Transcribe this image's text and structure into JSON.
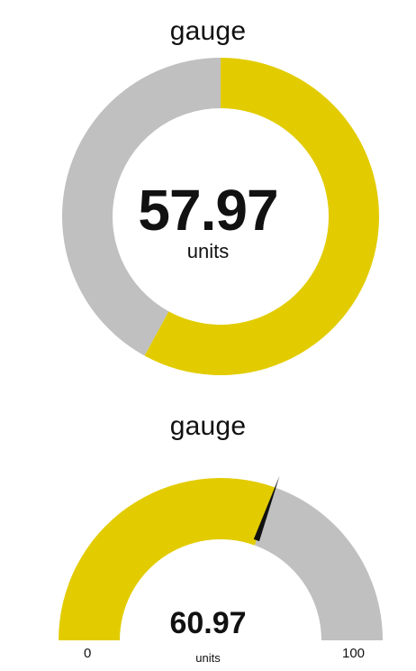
{
  "colors": {
    "fill": "#e2cc00",
    "track": "#c0c0c0",
    "needle": "#111111"
  },
  "donut_gauge": {
    "title": "gauge",
    "value": 57.97,
    "value_text": "57.97",
    "unit": "units",
    "min": 0,
    "max": 100
  },
  "semi_gauge": {
    "title": "gauge",
    "value": 60.97,
    "value_text": "60.97",
    "unit": "units",
    "min": 0,
    "max": 100,
    "min_label": "0",
    "max_label": "100"
  }
}
